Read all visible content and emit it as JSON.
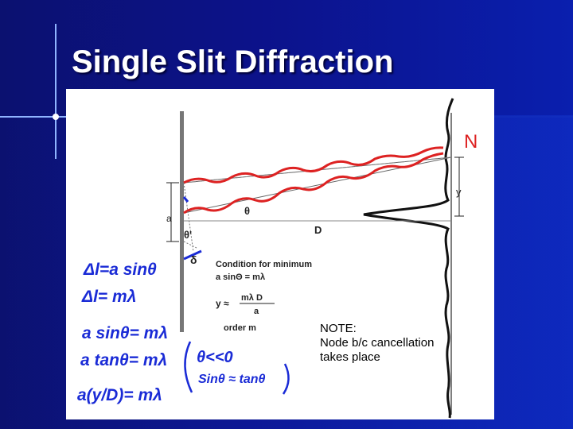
{
  "slide": {
    "title": "Single Slit Diffraction"
  },
  "diagram": {
    "labels": {
      "a": "a",
      "theta": "θ",
      "theta_prime": "θ'",
      "delta": "δ",
      "D": "D",
      "y": "y",
      "N": "N"
    },
    "condition": {
      "heading": "Condition for minimum",
      "formula": "a sinΘ = mλ",
      "y_lhs": "y ≈",
      "y_num": "mλ D",
      "y_den": "a",
      "order": "order m"
    },
    "handwritten": {
      "line1": "Δl=a sinθ",
      "line2": "Δl= mλ",
      "line3": "a sinθ= mλ",
      "line4": "a tanθ= mλ",
      "line5": "a(y/D)= mλ",
      "bracket_line1": "θ<<0",
      "bracket_line2": "Sinθ ≈ tanθ"
    },
    "note": "NOTE:\nNode b/c cancellation\ntakes place"
  },
  "colors": {
    "background": "#0b1170",
    "ink_red": "#dd2222",
    "ink_blue": "#1a2bd6"
  }
}
